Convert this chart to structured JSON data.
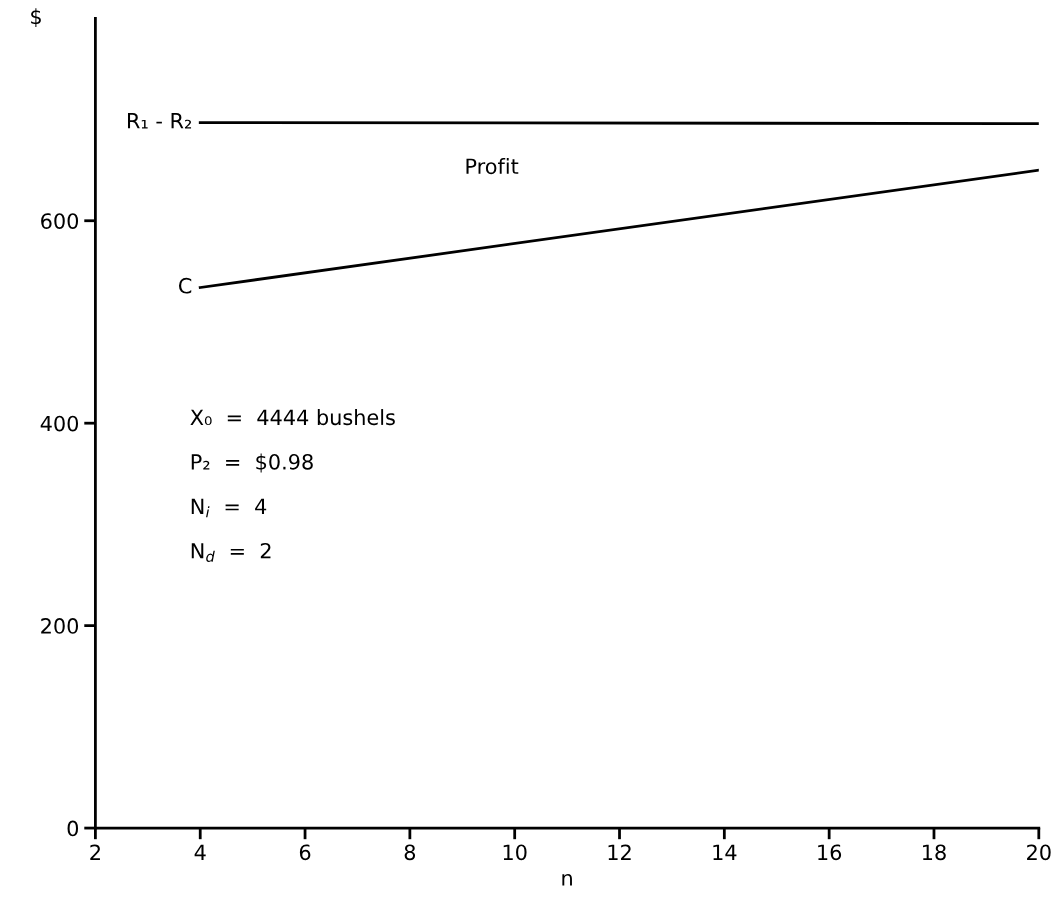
{
  "chart_data": {
    "type": "line",
    "xlabel": "n",
    "ylabel": "$",
    "series": [
      {
        "name": "R₁ - R₂",
        "color": "#000000",
        "values": [
          697,
          696
        ]
      },
      {
        "name": "C",
        "color": "#000000",
        "values": [
          534,
          650
        ]
      }
    ],
    "x": [
      4,
      20
    ],
    "annotations": [
      "Profit",
      "X₀  =  4444 bushels",
      "P₂  =  $0.98",
      "N$_{i}$  =  4",
      "N$_{d}$  =  2"
    ],
    "xlim": [
      2,
      20
    ],
    "xticks": [
      2,
      4,
      6,
      8,
      10,
      12,
      14,
      16,
      18,
      20
    ],
    "ylim": [
      0,
      800
    ],
    "yticks": [
      0,
      200,
      400,
      600
    ],
    "grid": false,
    "legend": false,
    "marker": "none",
    "line_style": "solid"
  }
}
